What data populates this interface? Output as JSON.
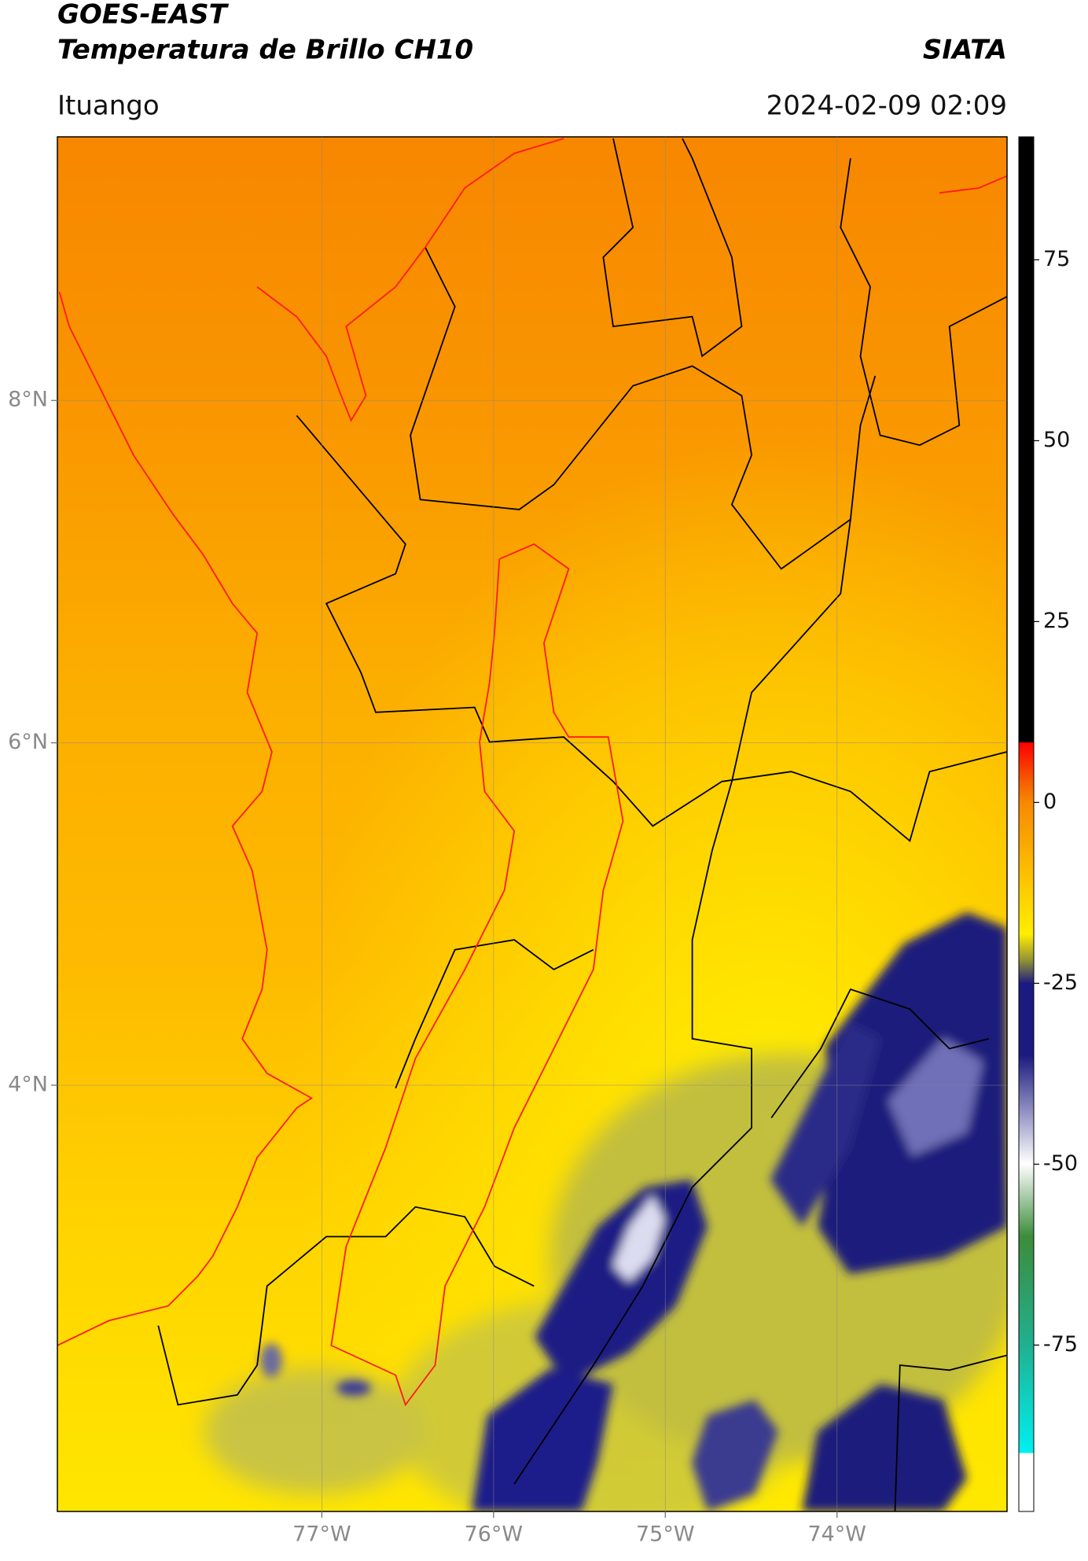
{
  "header": {
    "title": "GOES-EAST",
    "subtitle": "Temperatura de Brillo CH10",
    "brand": "SIATA",
    "location": "Ituango",
    "timestamp": "2024-02-09 02:09"
  },
  "chart_data": {
    "type": "map",
    "xlim": [
      -78.54,
      -73.01
    ],
    "ylim": [
      1.51,
      9.54
    ],
    "xticks": [
      {
        "value": -77,
        "label": "77°W"
      },
      {
        "value": -76,
        "label": "76°W"
      },
      {
        "value": -75,
        "label": "75°W"
      },
      {
        "value": -74,
        "label": "74°W"
      }
    ],
    "yticks": [
      {
        "value": 4,
        "label": "4°N"
      },
      {
        "value": 6,
        "label": "6°N"
      },
      {
        "value": 8,
        "label": "8°N"
      }
    ],
    "grid": true,
    "colorbar": {
      "clim": [
        -98,
        92
      ],
      "ticks": [
        75,
        50,
        25,
        0,
        -25,
        -50,
        -75
      ]
    }
  }
}
